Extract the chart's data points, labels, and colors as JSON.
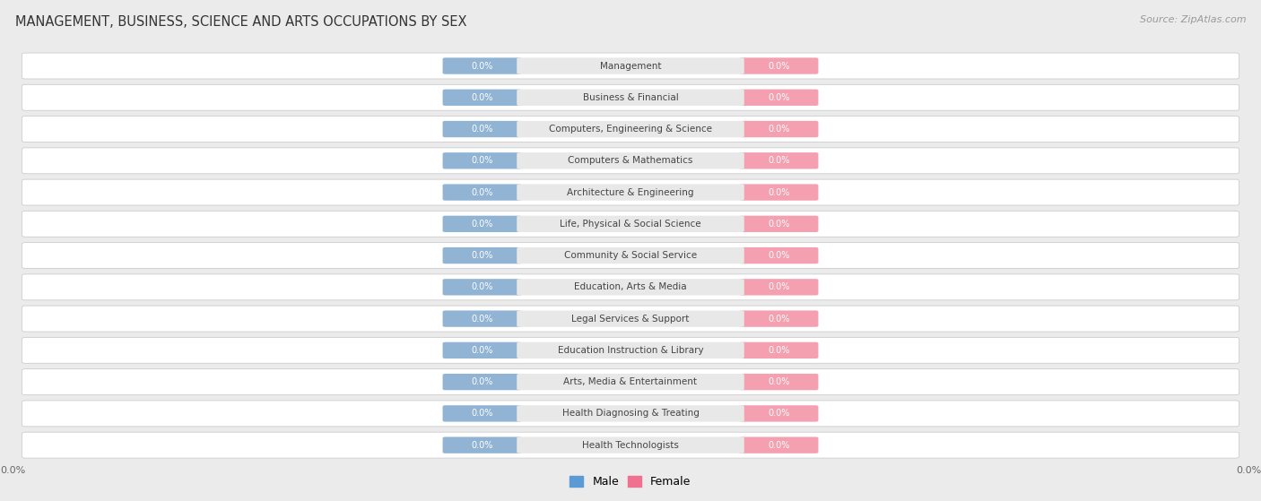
{
  "title": "Management, Business, Science and Arts Occupations by Sex",
  "title_display": "MANAGEMENT, BUSINESS, SCIENCE AND ARTS OCCUPATIONS BY SEX",
  "source": "Source: ZipAtlas.com",
  "categories": [
    "Management",
    "Business & Financial",
    "Computers, Engineering & Science",
    "Computers & Mathematics",
    "Architecture & Engineering",
    "Life, Physical & Social Science",
    "Community & Social Service",
    "Education, Arts & Media",
    "Legal Services & Support",
    "Education Instruction & Library",
    "Arts, Media & Entertainment",
    "Health Diagnosing & Treating",
    "Health Technologists"
  ],
  "male_values": [
    0.0,
    0.0,
    0.0,
    0.0,
    0.0,
    0.0,
    0.0,
    0.0,
    0.0,
    0.0,
    0.0,
    0.0,
    0.0
  ],
  "female_values": [
    0.0,
    0.0,
    0.0,
    0.0,
    0.0,
    0.0,
    0.0,
    0.0,
    0.0,
    0.0,
    0.0,
    0.0,
    0.0
  ],
  "male_color": "#92b4d4",
  "female_color": "#f4a0b0",
  "category_bg_color": "#e8e8e8",
  "background_color": "#ebebeb",
  "row_bg_color": "#f5f5f5",
  "legend_male_color": "#5b9bd5",
  "legend_female_color": "#f07090",
  "title_fontsize": 10.5,
  "source_fontsize": 8,
  "category_fontsize": 7.5,
  "value_fontsize": 7,
  "axis_label_fontsize": 8
}
